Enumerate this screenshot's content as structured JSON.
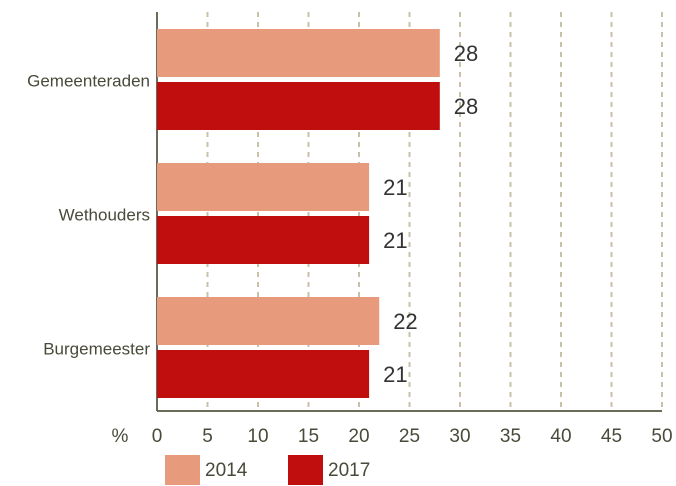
{
  "chart_data": {
    "type": "bar",
    "orientation": "horizontal",
    "categories": [
      "Gemeenteraden",
      "Wethouders",
      "Burgemeester"
    ],
    "series": [
      {
        "name": "2014",
        "color": "#e89b7c",
        "values": [
          28,
          21,
          22
        ]
      },
      {
        "name": "2017",
        "color": "#c00d0d",
        "values": [
          28,
          21,
          21
        ]
      }
    ],
    "xlabel": "%",
    "xlim": [
      0,
      50
    ],
    "xticks": [
      0,
      5,
      10,
      15,
      20,
      25,
      30,
      35,
      40,
      45,
      50
    ],
    "grid": true,
    "legend": "bottom"
  }
}
